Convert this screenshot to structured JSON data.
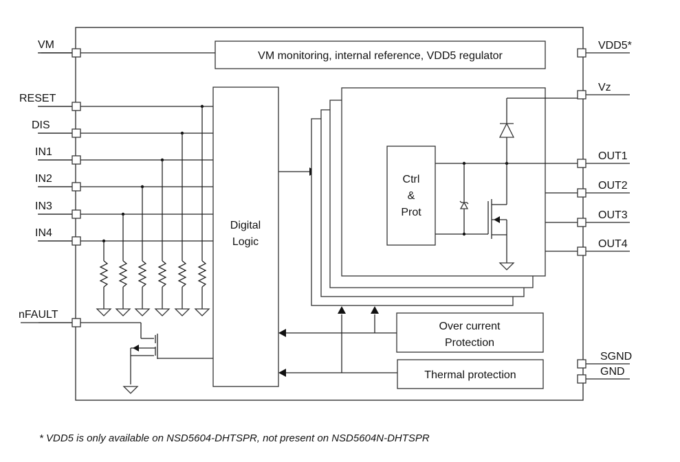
{
  "pins_left": [
    {
      "label": "VM"
    },
    {
      "label": "RESET"
    },
    {
      "label": "DIS"
    },
    {
      "label": "IN1"
    },
    {
      "label": "IN2"
    },
    {
      "label": "IN3"
    },
    {
      "label": "IN4"
    },
    {
      "label": "nFAULT"
    }
  ],
  "pins_right": [
    {
      "label": "VDD5*"
    },
    {
      "label": "Vz"
    },
    {
      "label": "OUT1"
    },
    {
      "label": "OUT2"
    },
    {
      "label": "OUT3"
    },
    {
      "label": "OUT4"
    },
    {
      "label": "SGND"
    },
    {
      "label": "GND"
    }
  ],
  "blocks": {
    "vm_monitor": "VM monitoring, internal reference, VDD5 regulator",
    "digital_logic": [
      "Digital",
      "Logic"
    ],
    "ctrl_prot": [
      "Ctrl",
      "&",
      "Prot"
    ],
    "over_current": [
      "Over current",
      "Protection"
    ],
    "thermal": "Thermal protection"
  },
  "footnote": "* VDD5 is only available on NSD5604-DHTSPR, not present on NSD5604N-DHTSPR"
}
